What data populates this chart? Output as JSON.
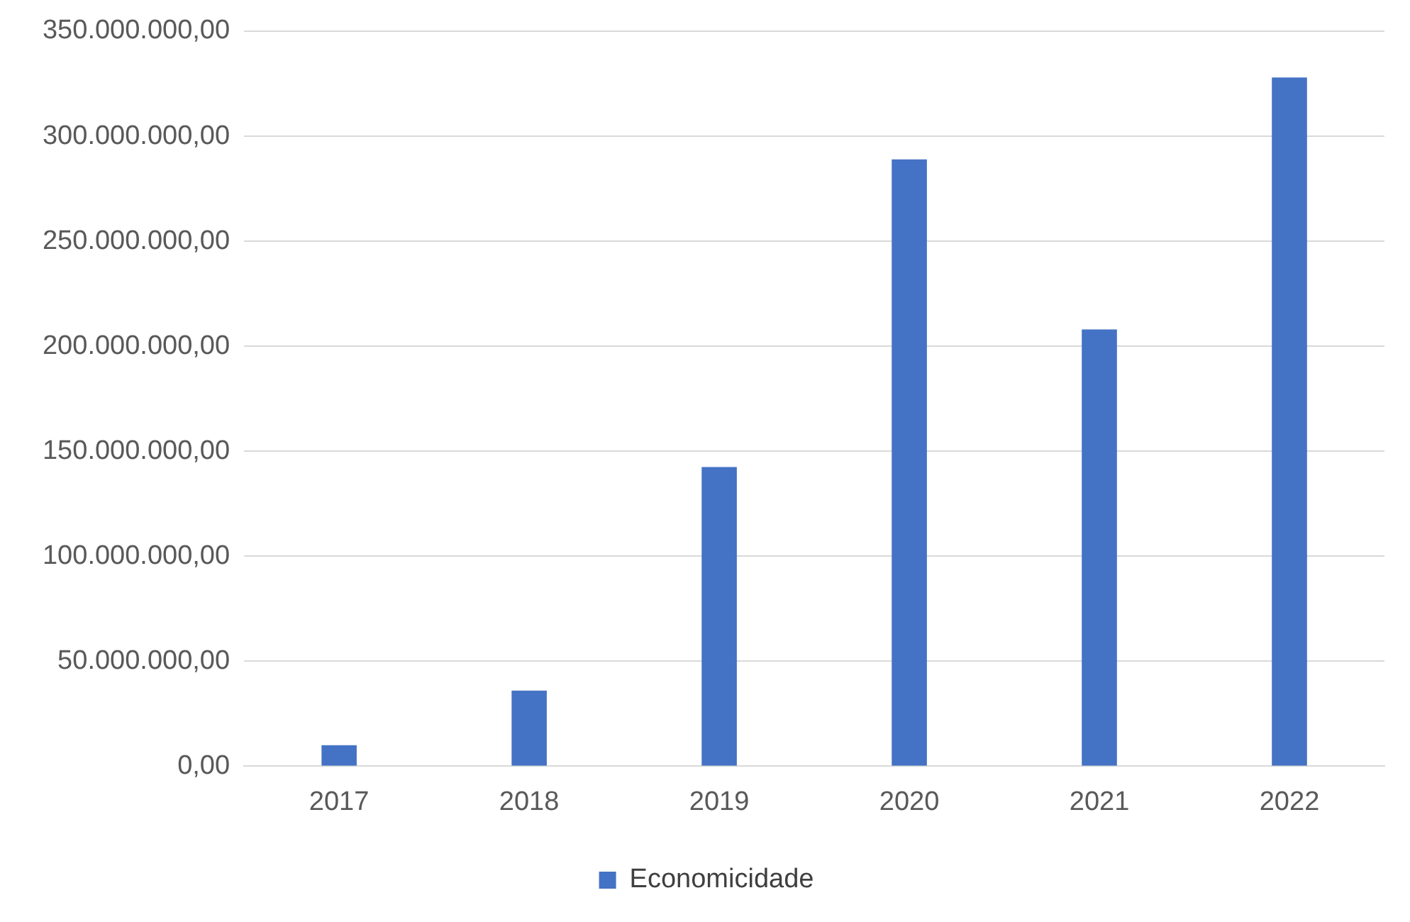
{
  "chart_data": {
    "type": "bar",
    "categories": [
      "2017",
      "2018",
      "2019",
      "2020",
      "2021",
      "2022"
    ],
    "series": [
      {
        "name": "Economicidade",
        "color": "#4472c4",
        "values": [
          10000000,
          36000000,
          142500000,
          289000000,
          208000000,
          328000000
        ]
      }
    ],
    "ylim": [
      0,
      350000000
    ],
    "yticks": [
      {
        "value": 0,
        "label": "0,00"
      },
      {
        "value": 50000000,
        "label": "50.000.000,00"
      },
      {
        "value": 100000000,
        "label": "100.000.000,00"
      },
      {
        "value": 150000000,
        "label": "150.000.000,00"
      },
      {
        "value": 200000000,
        "label": "200.000.000,00"
      },
      {
        "value": 250000000,
        "label": "250.000.000,00"
      },
      {
        "value": 300000000,
        "label": "300.000.000,00"
      },
      {
        "value": 350000000,
        "label": "350.000.000,00"
      }
    ],
    "grid": "y",
    "legend": "bottom"
  }
}
